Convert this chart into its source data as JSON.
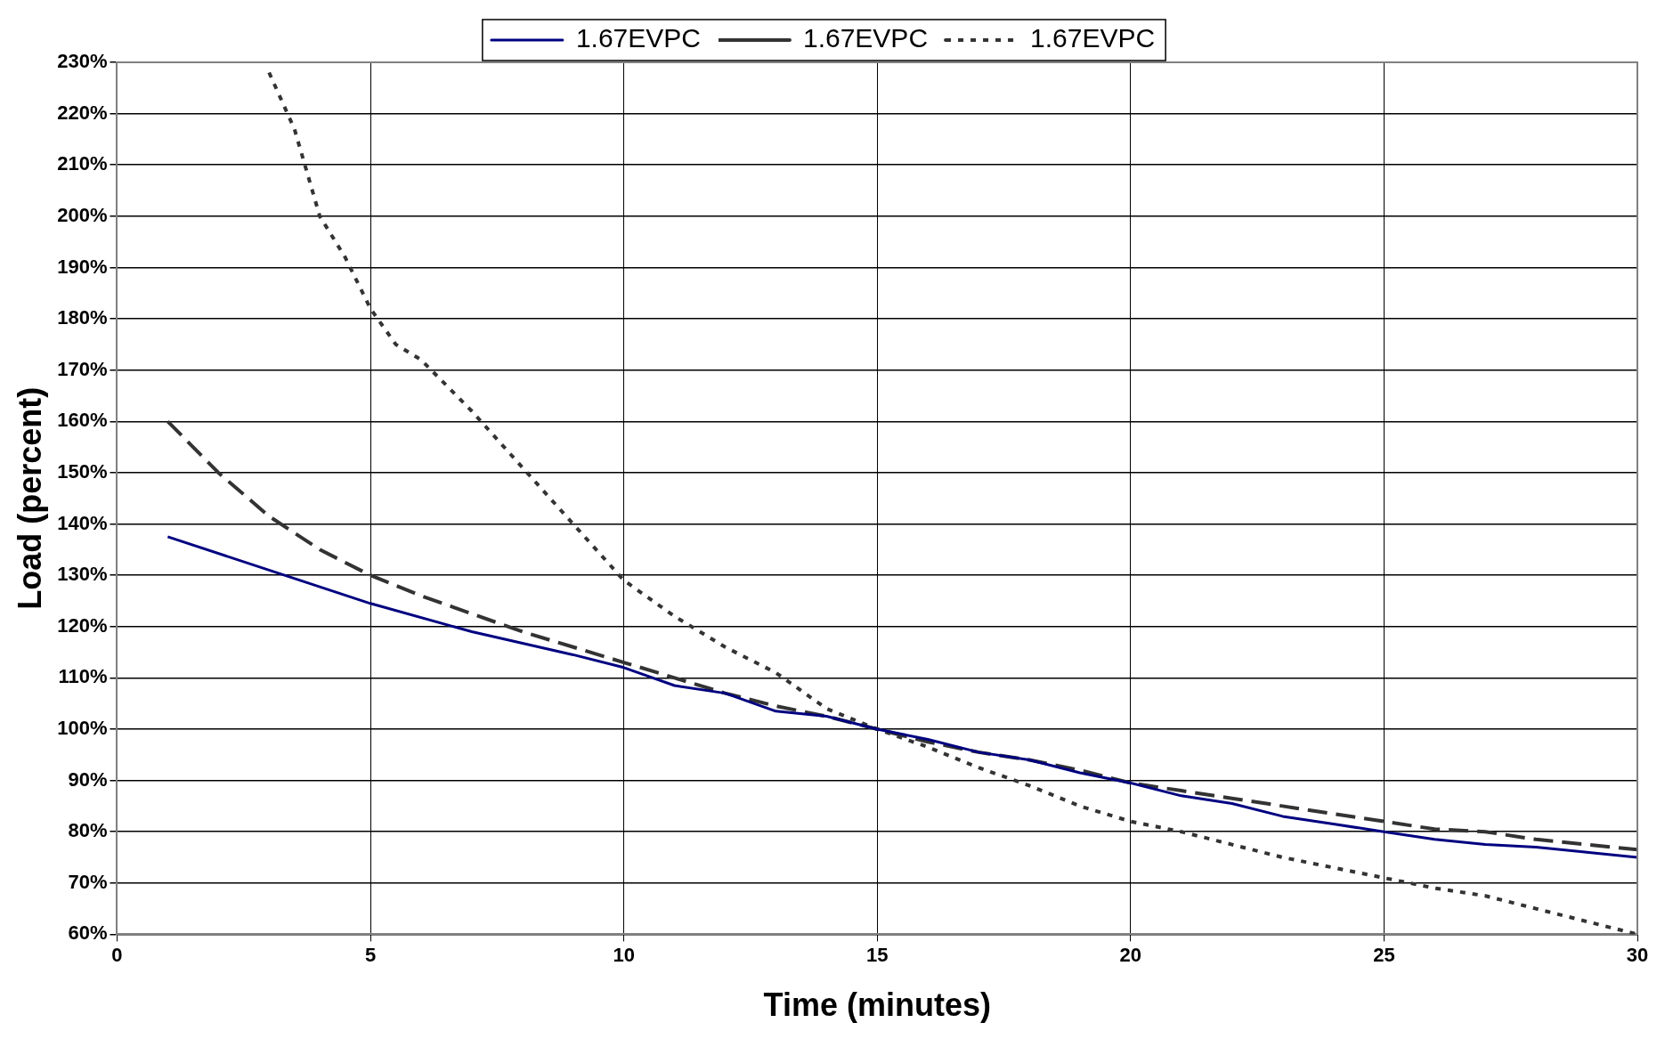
{
  "chart_data": {
    "type": "line",
    "xlabel": "Time (minutes)",
    "ylabel": "Load (percent)",
    "xlim": [
      0,
      30
    ],
    "xticks": [
      0,
      5,
      10,
      15,
      20,
      25,
      30
    ],
    "ylim": [
      60,
      230
    ],
    "yticks": [
      {
        "value": 60,
        "label": "60%"
      },
      {
        "value": 70,
        "label": "70%"
      },
      {
        "value": 80,
        "label": "80%"
      },
      {
        "value": 90,
        "label": "90%"
      },
      {
        "value": 100,
        "label": "100%"
      },
      {
        "value": 110,
        "label": "110%"
      },
      {
        "value": 120,
        "label": "120%"
      },
      {
        "value": 130,
        "label": "130%"
      },
      {
        "value": 140,
        "label": "140%"
      },
      {
        "value": 150,
        "label": "150%"
      },
      {
        "value": 160,
        "label": "160%"
      },
      {
        "value": 170,
        "label": "170%"
      },
      {
        "value": 180,
        "label": "180%"
      },
      {
        "value": 190,
        "label": "190%"
      },
      {
        "value": 200,
        "label": "200%"
      },
      {
        "value": 210,
        "label": "210%"
      },
      {
        "value": 220,
        "label": "220%"
      },
      {
        "value": 230,
        "label": "230%"
      }
    ],
    "grid": true,
    "legend": "top",
    "marker": "none",
    "series": [
      {
        "name": "1.67EVPC",
        "color": "#000080",
        "line_style": "solid",
        "x": [
          1,
          3,
          5,
          7,
          9,
          10,
          11,
          12,
          13,
          14,
          15,
          16,
          17,
          18,
          19,
          20,
          21,
          22,
          23,
          24,
          25,
          26,
          27,
          28,
          29,
          30
        ],
        "values": [
          137.5,
          131,
          124.5,
          119,
          114.5,
          112,
          108.5,
          107,
          103.5,
          102.5,
          100,
          98,
          95.5,
          94,
          91.5,
          89.5,
          87,
          85.5,
          83,
          81.5,
          80,
          78.5,
          77.5,
          77,
          76,
          75
        ]
      },
      {
        "name": "1.67EVPC",
        "color": "#333333",
        "line_style": "dashed",
        "x": [
          1,
          2,
          3,
          4,
          5,
          6,
          7,
          8,
          9,
          10,
          11,
          12,
          13,
          14,
          15,
          16,
          17,
          18,
          19,
          20,
          21,
          22,
          23,
          24,
          25,
          26,
          27,
          28,
          29,
          30
        ],
        "values": [
          160,
          150,
          141.5,
          135,
          130,
          126,
          122.5,
          119,
          116,
          113,
          110,
          107,
          104.5,
          102.5,
          100,
          97.5,
          95.5,
          94,
          92,
          89.5,
          88,
          86.5,
          85,
          83.5,
          82,
          80.5,
          80,
          78.5,
          77.5,
          76.5
        ]
      },
      {
        "name": "1.67EVPC",
        "color": "#333333",
        "line_style": "dotted",
        "x": [
          3,
          3.5,
          4,
          4.5,
          5,
          5.5,
          6,
          7,
          8,
          9,
          10,
          11,
          12,
          13,
          14,
          15,
          16,
          17,
          18,
          19,
          20,
          21,
          22,
          23,
          24,
          25,
          26,
          27,
          28,
          29,
          30
        ],
        "values": [
          228,
          217,
          200,
          192,
          182,
          175,
          172,
          162,
          151,
          140,
          129,
          122,
          116,
          111,
          104,
          100,
          96.5,
          92.5,
          89,
          85,
          82,
          80,
          77.5,
          75,
          73,
          71,
          69,
          67.5,
          65,
          62.5,
          60
        ]
      }
    ]
  }
}
